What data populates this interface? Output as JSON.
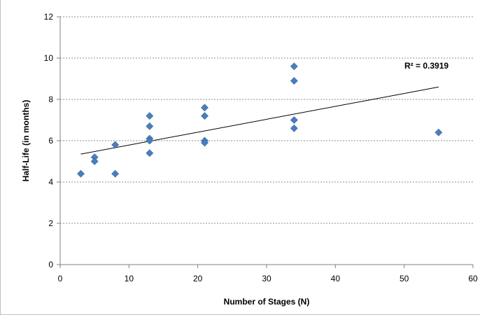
{
  "chart_data": {
    "type": "scatter",
    "xlabel": "Number of Stages (N)",
    "ylabel": "Half-Life (in months)",
    "xlim": [
      0,
      60
    ],
    "ylim": [
      0,
      12
    ],
    "x_ticks": [
      0,
      10,
      20,
      30,
      40,
      50,
      60
    ],
    "y_ticks": [
      0,
      2,
      4,
      6,
      8,
      10,
      12
    ],
    "grid": "horizontal dashed",
    "marker": "diamond",
    "marker_color": "#4a7ebb",
    "points": [
      {
        "x": 3,
        "y": 4.4
      },
      {
        "x": 5,
        "y": 5.2
      },
      {
        "x": 5,
        "y": 5.0
      },
      {
        "x": 8,
        "y": 5.8
      },
      {
        "x": 8,
        "y": 4.4
      },
      {
        "x": 13,
        "y": 7.2
      },
      {
        "x": 13,
        "y": 6.7
      },
      {
        "x": 13,
        "y": 6.1
      },
      {
        "x": 13,
        "y": 6.0
      },
      {
        "x": 13,
        "y": 5.4
      },
      {
        "x": 21,
        "y": 7.6
      },
      {
        "x": 21,
        "y": 7.2
      },
      {
        "x": 21,
        "y": 6.0
      },
      {
        "x": 21,
        "y": 5.9
      },
      {
        "x": 34,
        "y": 9.6
      },
      {
        "x": 34,
        "y": 8.9
      },
      {
        "x": 34,
        "y": 7.0
      },
      {
        "x": 34,
        "y": 6.6
      },
      {
        "x": 55,
        "y": 6.4
      }
    ],
    "trendline": {
      "type": "linear",
      "x_start": 3,
      "y_start": 5.35,
      "x_end": 55,
      "y_end": 8.6
    },
    "annotation": "R² = 0.3919"
  }
}
